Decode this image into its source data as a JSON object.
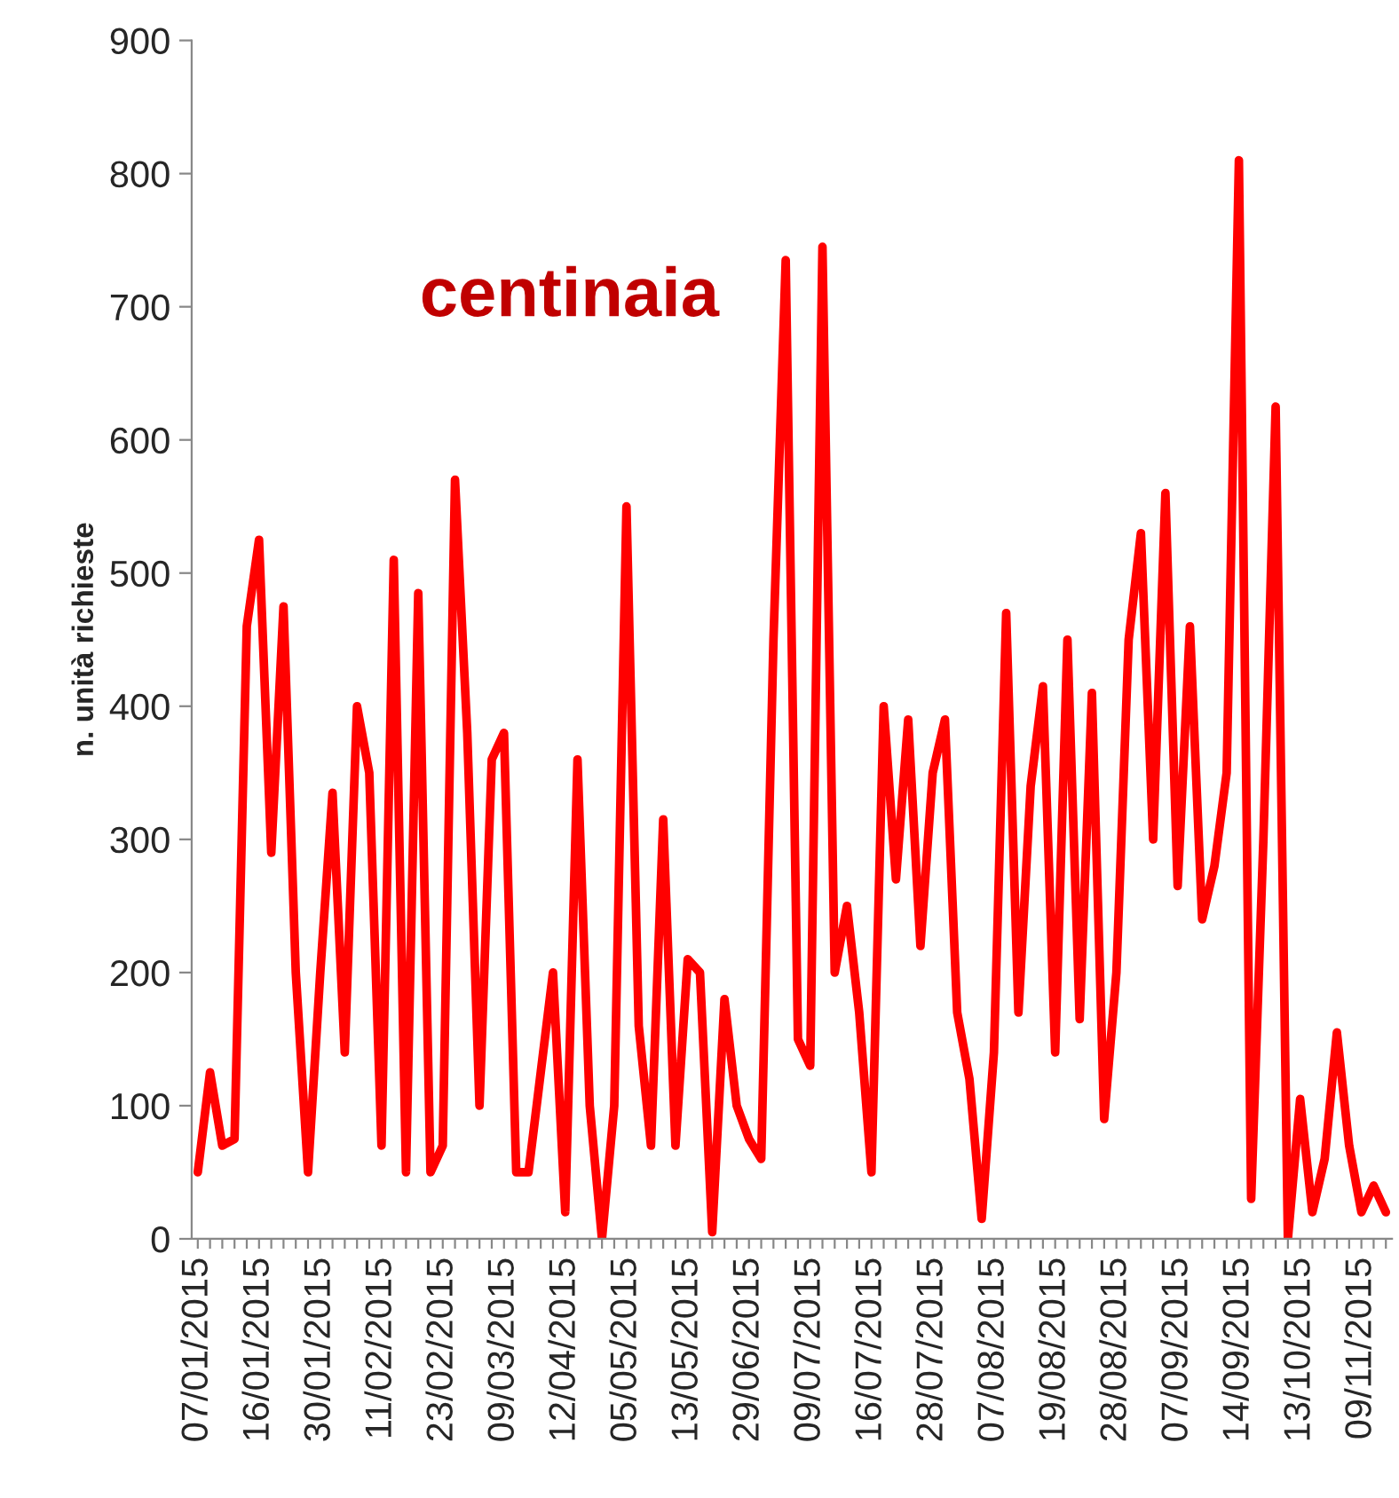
{
  "chart_data": {
    "type": "line",
    "ylabel": "n. unità richieste",
    "annotations": [
      "centinaia"
    ],
    "categories": [
      "07/01/2015",
      null,
      null,
      null,
      null,
      "16/01/2015",
      null,
      null,
      null,
      null,
      "30/01/2015",
      null,
      null,
      null,
      null,
      "11/02/2015",
      null,
      null,
      null,
      null,
      "23/02/2015",
      null,
      null,
      null,
      null,
      "09/03/2015",
      null,
      null,
      null,
      null,
      "12/04/2015",
      null,
      null,
      null,
      null,
      "05/05/2015",
      null,
      null,
      null,
      null,
      "13/05/2015",
      null,
      null,
      null,
      null,
      "29/06/2015",
      null,
      null,
      null,
      null,
      "09/07/2015",
      null,
      null,
      null,
      null,
      "16/07/2015",
      null,
      null,
      null,
      null,
      "28/07/2015",
      null,
      null,
      null,
      null,
      "07/08/2015",
      null,
      null,
      null,
      null,
      "19/08/2015",
      null,
      null,
      null,
      null,
      "28/08/2015",
      null,
      null,
      null,
      null,
      "07/09/2015",
      null,
      null,
      null,
      null,
      "14/09/2015",
      null,
      null,
      null,
      null,
      "13/10/2015",
      null,
      null,
      null,
      null,
      "09/11/2015",
      null,
      null
    ],
    "series": [
      {
        "color": "#ff0000",
        "values": [
          50,
          125,
          70,
          75,
          460,
          525,
          290,
          475,
          200,
          50,
          200,
          335,
          140,
          400,
          350,
          70,
          510,
          50,
          485,
          50,
          70,
          570,
          380,
          100,
          360,
          380,
          50,
          50,
          125,
          200,
          20,
          360,
          100,
          0,
          100,
          550,
          160,
          70,
          315,
          70,
          210,
          200,
          5,
          180,
          100,
          75,
          60,
          450,
          735,
          150,
          130,
          745,
          200,
          250,
          170,
          50,
          400,
          270,
          390,
          220,
          350,
          390,
          170,
          120,
          15,
          140,
          470,
          170,
          340,
          415,
          140,
          450,
          165,
          410,
          90,
          200,
          450,
          530,
          300,
          560,
          265,
          460,
          240,
          280,
          350,
          810,
          30,
          300,
          625,
          0,
          105,
          20,
          60,
          155,
          70,
          20,
          40,
          20
        ]
      }
    ],
    "ylim": [
      0,
      900
    ],
    "yticks": [
      0,
      100,
      200,
      300,
      400,
      500,
      600,
      700,
      800,
      900
    ],
    "grid": false,
    "marker": "none",
    "line_style": "solid"
  }
}
